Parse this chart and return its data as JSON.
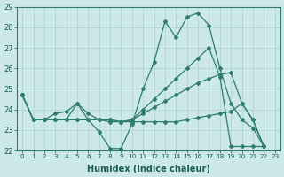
{
  "xlabel": "Humidex (Indice chaleur)",
  "background_color": "#cce8e8",
  "line_color": "#2e7d6e",
  "grid_color": "#aacfcf",
  "xlim": [
    -0.5,
    23.5
  ],
  "ylim": [
    22,
    29
  ],
  "yticks": [
    22,
    23,
    24,
    25,
    26,
    27,
    28,
    29
  ],
  "xticks": [
    0,
    1,
    2,
    3,
    4,
    5,
    6,
    7,
    8,
    9,
    10,
    11,
    12,
    13,
    14,
    15,
    16,
    17,
    18,
    19,
    20,
    21,
    22,
    23
  ],
  "lines": [
    [
      24.7,
      23.5,
      23.5,
      23.8,
      23.9,
      24.3,
      23.5,
      22.9,
      22.1,
      22.1,
      23.3,
      25.0,
      26.3,
      28.3,
      27.5,
      28.5,
      28.7,
      28.1,
      26.0,
      24.3,
      23.5,
      23.1,
      22.2
    ],
    [
      24.7,
      23.5,
      23.5,
      23.5,
      23.5,
      23.5,
      23.5,
      23.5,
      23.5,
      23.4,
      23.4,
      23.4,
      23.4,
      23.4,
      23.4,
      23.5,
      23.6,
      23.7,
      23.8,
      23.9,
      24.3,
      23.5,
      22.2
    ],
    [
      24.7,
      23.5,
      23.5,
      23.5,
      23.5,
      23.5,
      23.5,
      23.5,
      23.5,
      23.4,
      23.5,
      23.8,
      24.1,
      24.4,
      24.7,
      25.0,
      25.3,
      25.5,
      25.7,
      25.8,
      24.3,
      23.5,
      22.2
    ],
    [
      24.7,
      23.5,
      23.5,
      23.5,
      23.5,
      24.3,
      23.8,
      23.5,
      23.4,
      23.4,
      23.5,
      24.0,
      24.5,
      25.0,
      25.5,
      26.0,
      26.5,
      27.0,
      25.6,
      22.2,
      22.2,
      22.2,
      22.2
    ]
  ]
}
